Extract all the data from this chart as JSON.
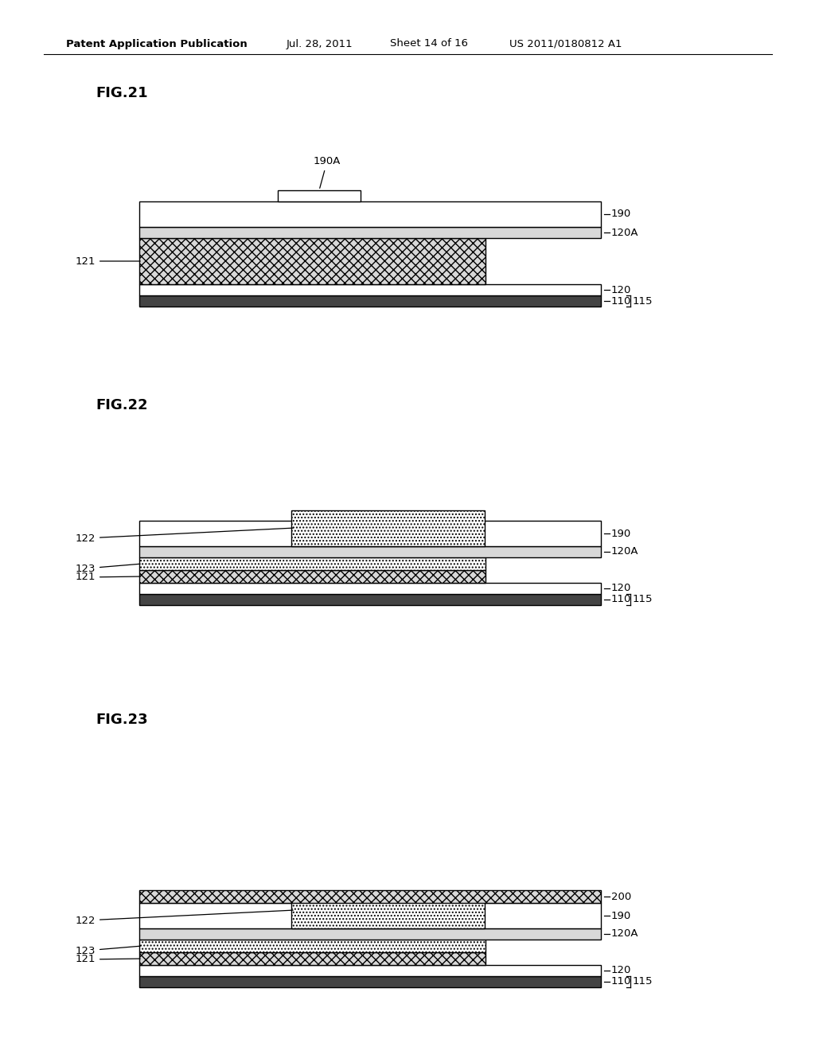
{
  "bg_color": "#ffffff",
  "header_text": "Patent Application Publication",
  "header_date": "Jul. 28, 2011",
  "header_sheet": "Sheet 14 of 16",
  "header_patent": "US 2011/0180812 A1",
  "colors": {
    "white": "#ffffff",
    "black": "#000000",
    "dark_gray": "#444444",
    "med_gray": "#aaaaaa",
    "light_gray": "#d8d8d8",
    "bg": "#ffffff"
  }
}
